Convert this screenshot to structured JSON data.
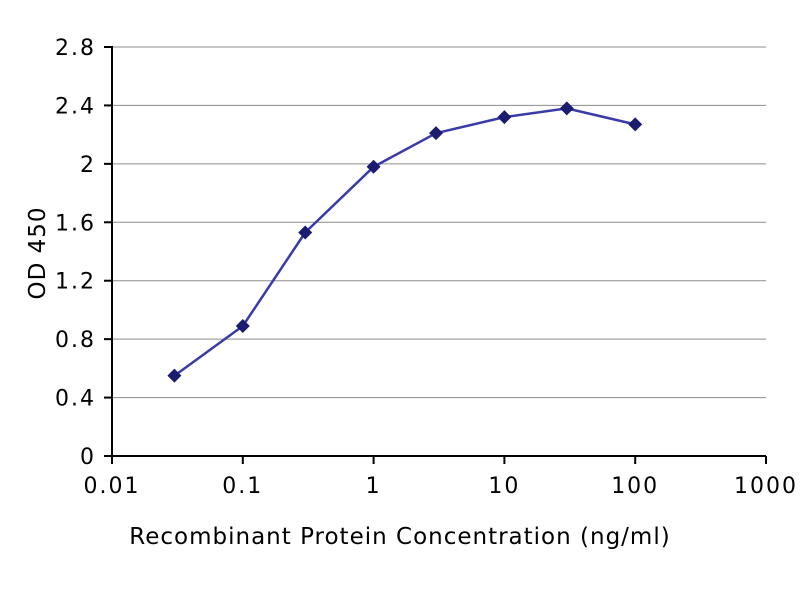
{
  "figure": {
    "background": "#ffffff"
  },
  "chart_data": {
    "type": "line",
    "title": "",
    "xlabel": "Recombinant Protein Concentration (ng/ml)",
    "ylabel": "OD 450",
    "x_scale": "log",
    "xlim": [
      0.01,
      1000
    ],
    "ylim": [
      0,
      2.8
    ],
    "x_ticks": [
      0.01,
      0.1,
      1,
      10,
      100,
      1000
    ],
    "x_tick_labels": [
      "0.01",
      "0.1",
      "1",
      "10",
      "100",
      "1000"
    ],
    "y_ticks": [
      0,
      0.4,
      0.8,
      1.2,
      1.6,
      2,
      2.4,
      2.8
    ],
    "y_tick_labels": [
      "0",
      "0.4",
      "0.8",
      "1.2",
      "1.6",
      "2",
      "2.4",
      "2.8"
    ],
    "grid": "horizontal",
    "legend": "none",
    "grid_color": "#8c8c8c",
    "axis_color": "#000000",
    "plot_bg": "#ffffff",
    "series": [
      {
        "name": "OD 450",
        "x": [
          0.03,
          0.1,
          0.3,
          1,
          3,
          10,
          30,
          100
        ],
        "y": [
          0.55,
          0.89,
          1.53,
          1.98,
          2.21,
          2.32,
          2.38,
          2.27
        ],
        "color": "#3a3aa8",
        "marker": "diamond",
        "marker_color": "#1b1b70"
      }
    ]
  }
}
